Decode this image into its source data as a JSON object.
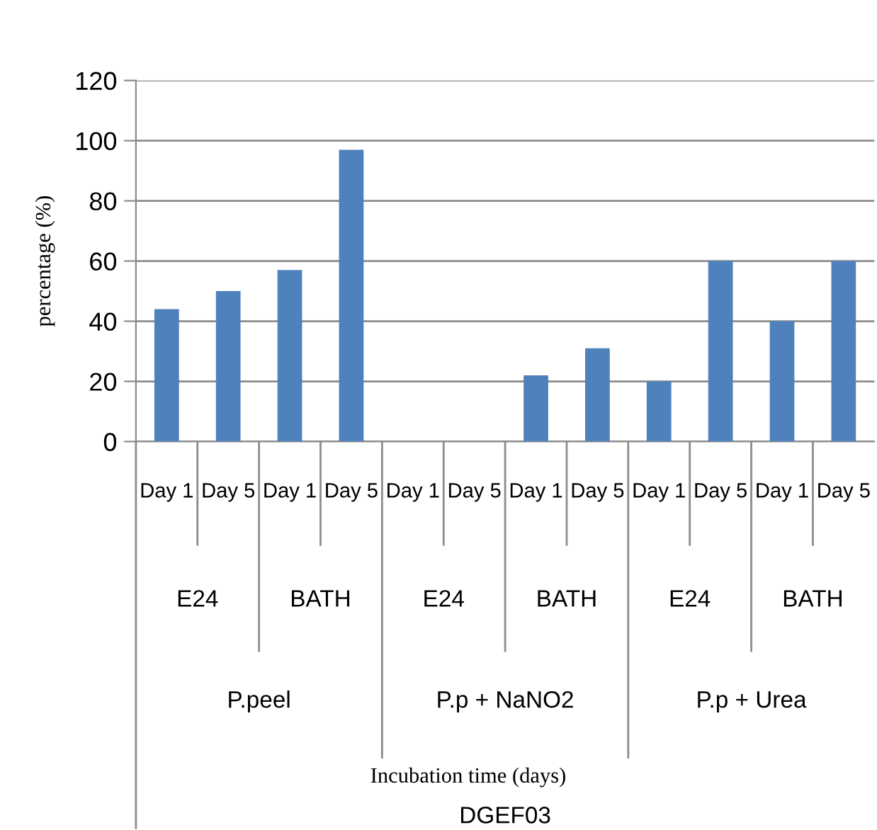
{
  "chart_data": {
    "type": "bar",
    "ylabel": "percentage (%)",
    "categories": [
      "Day 1",
      "Day 5",
      "Day 1",
      "Day 5",
      "Day 1",
      "Day 5",
      "Day 1",
      "Day 5",
      "Day 1",
      "Day 5",
      "Day 1",
      "Day 5"
    ],
    "values": [
      44,
      50,
      57,
      97,
      0,
      0,
      22,
      31,
      20,
      60,
      40,
      60
    ],
    "color": "#4f81bd",
    "ylim": [
      0,
      120
    ],
    "yticks": [
      0,
      20,
      40,
      60,
      80,
      100,
      120
    ],
    "grid": "y",
    "annotations": [
      "E24",
      "BATH",
      "E24",
      "BATH",
      "E24",
      "BATH",
      "P.peel",
      "P.p + NaNO2",
      "P.p + Urea",
      "Incubation time (days)",
      "DGEF03"
    ]
  }
}
